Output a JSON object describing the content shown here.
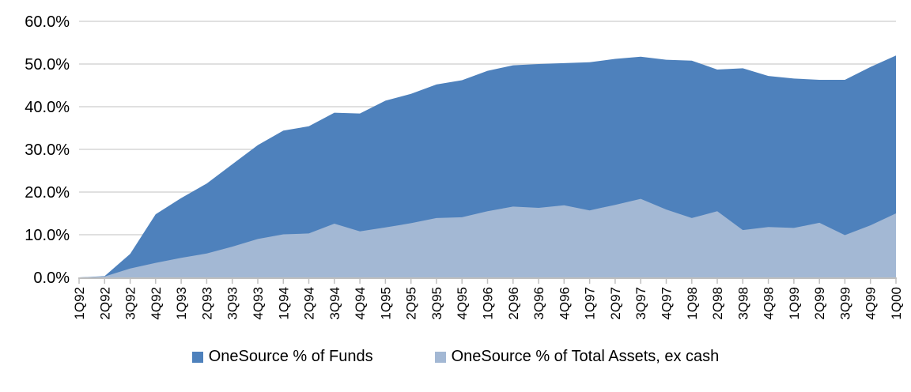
{
  "chart_data": {
    "type": "area",
    "stacked": false,
    "title": "",
    "xlabel": "",
    "ylabel": "",
    "grid": "horizontal",
    "legend_position": "bottom",
    "categories": [
      "1Q92",
      "2Q92",
      "3Q92",
      "4Q92",
      "1Q93",
      "2Q93",
      "3Q93",
      "4Q93",
      "1Q94",
      "2Q94",
      "3Q94",
      "4Q94",
      "1Q95",
      "2Q95",
      "3Q95",
      "4Q95",
      "1Q96",
      "2Q96",
      "3Q96",
      "4Q96",
      "1Q97",
      "2Q97",
      "3Q97",
      "4Q97",
      "1Q98",
      "2Q98",
      "3Q98",
      "4Q98",
      "1Q99",
      "2Q99",
      "3Q99",
      "4Q99",
      "1Q00"
    ],
    "series": [
      {
        "name": "OneSource % of Funds",
        "color": "#4E81BC",
        "values": [
          0.0,
          0.3,
          5.5,
          14.8,
          18.6,
          22.0,
          26.5,
          31.0,
          34.4,
          35.4,
          38.6,
          38.4,
          41.4,
          43.0,
          45.2,
          46.2,
          48.4,
          49.7,
          50.0,
          50.2,
          50.4,
          51.2,
          51.7,
          51.0,
          50.8,
          48.7,
          49.0,
          47.2,
          46.6,
          46.3,
          46.3,
          49.3,
          52.0
        ]
      },
      {
        "name": "OneSource % of Total Assets, ex cash",
        "color": "#A3B8D4",
        "values": [
          0.0,
          0.2,
          2.1,
          3.4,
          4.6,
          5.6,
          7.2,
          9.0,
          10.1,
          10.3,
          12.6,
          10.8,
          11.7,
          12.7,
          13.9,
          14.1,
          15.5,
          16.6,
          16.3,
          16.9,
          15.7,
          17.0,
          18.4,
          15.9,
          13.9,
          15.5,
          11.1,
          11.8,
          11.6,
          12.8,
          9.9,
          12.2,
          15.0
        ]
      }
    ],
    "ylim": [
      0,
      60
    ],
    "yticks": [
      0,
      10,
      20,
      30,
      40,
      50,
      60
    ],
    "ytick_labels": [
      "0.0%",
      "10.0%",
      "20.0%",
      "30.0%",
      "40.0%",
      "50.0%",
      "60.0%"
    ],
    "colors": {
      "gridline": "#D6D6D6",
      "axis": "#BFBFBF",
      "text": "#000000",
      "background": "#FFFFFF"
    }
  }
}
